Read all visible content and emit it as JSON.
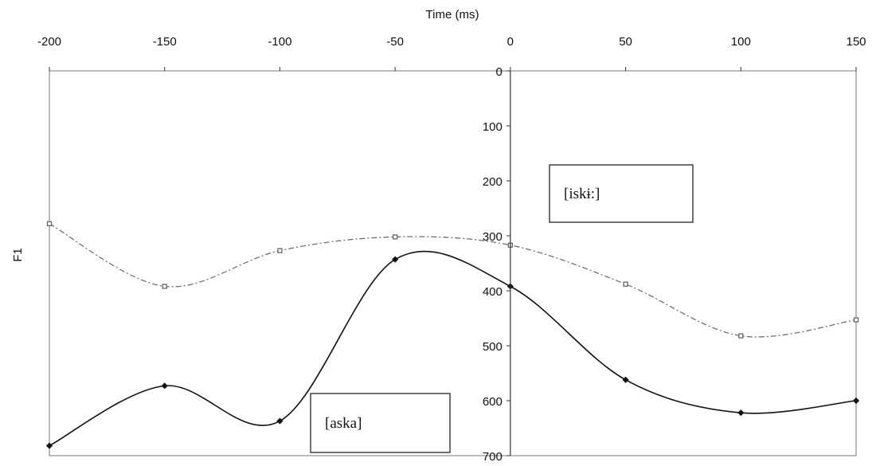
{
  "chart_data": {
    "type": "line",
    "xlabel": "Time (ms)",
    "ylabel": "F1",
    "xlim": [
      -200,
      150
    ],
    "ylim": [
      0,
      700
    ],
    "y_inverted": true,
    "x_axis_position": "top",
    "y_axis_at_x": 0,
    "x_ticks": [
      -200,
      -150,
      -100,
      -50,
      0,
      50,
      100,
      150
    ],
    "y_ticks": [
      0,
      100,
      200,
      300,
      400,
      500,
      600,
      700
    ],
    "x_tick_labels": [
      "-200",
      "-150",
      "-100",
      "-50",
      "0",
      "50",
      "100",
      "150"
    ],
    "y_tick_labels": [
      "0",
      "100",
      "200",
      "300",
      "400",
      "500",
      "600",
      "700"
    ],
    "grid": false,
    "x": [
      -200,
      -150,
      -100,
      -50,
      0,
      50,
      100,
      150
    ],
    "series": [
      {
        "name": "[iskɨ:]",
        "values": [
          278,
          392,
          327,
          302,
          317,
          388,
          482,
          453
        ],
        "color": "#666666",
        "line_style": "dash-dot",
        "marker": "square"
      },
      {
        "name": "[aska]",
        "values": [
          682,
          573,
          637,
          343,
          392,
          562,
          622,
          600
        ],
        "color": "#111111",
        "line_style": "solid",
        "marker": "diamond"
      }
    ]
  }
}
